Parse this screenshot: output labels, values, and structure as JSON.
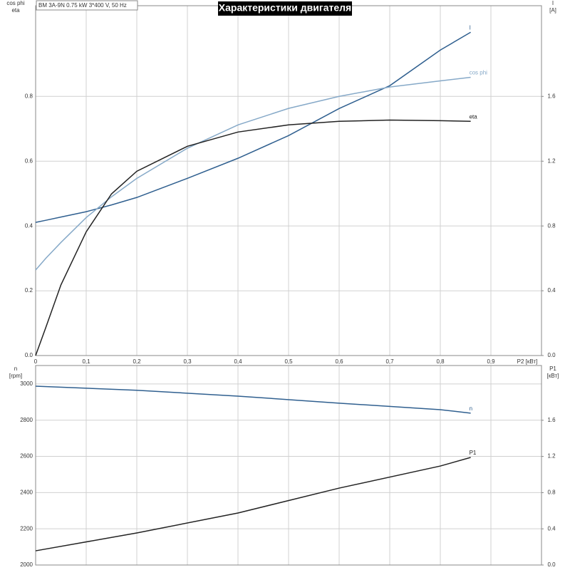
{
  "chart_data": [
    {
      "type": "line",
      "title": "Характеристики двигателя",
      "annotation": "BM 3A-9N   0.75 kW   3*400 V, 50 Hz",
      "xlabel": "P2 [кВт]",
      "ylabel": [
        "cos phi",
        "eta"
      ],
      "y2label": [
        "I",
        "[A]"
      ],
      "x": [
        0,
        0.02,
        0.05,
        0.1,
        0.15,
        0.2,
        0.3,
        0.4,
        0.5,
        0.6,
        0.7,
        0.8,
        0.86
      ],
      "xlim": [
        0,
        1.0
      ],
      "xticks": [
        0,
        {
          "value": 0.1,
          "label": "0,1"
        },
        {
          "value": 0.2,
          "label": "0,2"
        },
        {
          "value": 0.3,
          "label": "0,3"
        },
        {
          "value": 0.4,
          "label": "0,4"
        },
        {
          "value": 0.5,
          "label": "0,5"
        },
        {
          "value": 0.6,
          "label": "0,6"
        },
        {
          "value": 0.7,
          "label": "0,7"
        },
        {
          "value": 0.8,
          "label": "0,8"
        },
        {
          "value": 0.9,
          "label": "0,9"
        }
      ],
      "ylim": [
        0,
        1.08
      ],
      "yticks": [
        {
          "value": 0,
          "label": "0.0"
        },
        0.2,
        0.4,
        0.6,
        0.8
      ],
      "y2lim": [
        0,
        2.16
      ],
      "y2ticks": [
        {
          "value": 0,
          "label": "0.0"
        },
        0.4,
        0.8,
        1.2,
        1.6
      ],
      "grid": true,
      "series": [
        {
          "name": "I",
          "color": "#2f5f8f",
          "axis": "y2",
          "values": [
            0.822,
            0.835,
            0.855,
            0.888,
            0.93,
            0.976,
            1.094,
            1.218,
            1.358,
            1.525,
            1.666,
            1.886,
            1.996
          ]
        },
        {
          "name": "cos phi",
          "color": "#86a9c8",
          "values": [
            0.264,
            0.3,
            0.349,
            0.426,
            0.49,
            0.547,
            0.64,
            0.712,
            0.763,
            0.8,
            0.829,
            0.848,
            0.859
          ]
        },
        {
          "name": "eta",
          "color": "#222222",
          "values": [
            0,
            0.086,
            0.218,
            0.382,
            0.499,
            0.569,
            0.646,
            0.69,
            0.712,
            0.723,
            0.727,
            0.725,
            0.723
          ]
        }
      ]
    },
    {
      "type": "line",
      "ylabel": [
        "n",
        "[rpm]"
      ],
      "y2label": [
        "P1",
        "[кВт]"
      ],
      "x": [
        0,
        0.2,
        0.4,
        0.6,
        0.8,
        0.86
      ],
      "xlim": [
        0,
        1.0
      ],
      "ylim": [
        2000,
        3102
      ],
      "yticks": [
        2000,
        2200,
        2400,
        2600,
        2800,
        3000
      ],
      "y2lim": [
        0,
        2.205
      ],
      "y2ticks": [
        {
          "value": 0,
          "label": "0.0"
        },
        0.4,
        0.8,
        1.2,
        1.6
      ],
      "grid": true,
      "series": [
        {
          "name": "n",
          "color": "#2f5f8f",
          "values": [
            2988,
            2965,
            2933,
            2894,
            2858,
            2839
          ]
        },
        {
          "name": "P1",
          "color": "#222222",
          "axis": "y2",
          "values": [
            0.157,
            0.354,
            0.575,
            0.85,
            1.094,
            1.189
          ]
        }
      ]
    }
  ]
}
